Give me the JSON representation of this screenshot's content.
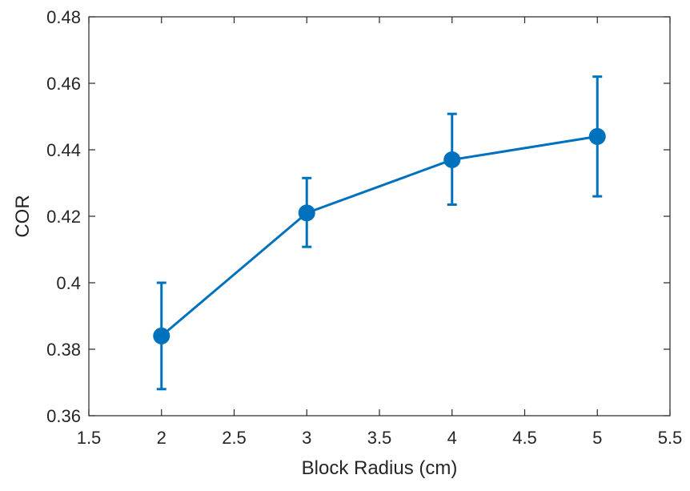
{
  "chart_data": {
    "type": "line",
    "title": "",
    "xlabel": "Block Radius (cm)",
    "ylabel": "COR",
    "xlim": [
      1.5,
      5.5
    ],
    "ylim": [
      0.36,
      0.48
    ],
    "xticks": [
      1.5,
      2,
      2.5,
      3,
      3.5,
      4,
      4.5,
      5,
      5.5
    ],
    "xtick_labels": [
      "1.5",
      "2",
      "2.5",
      "3",
      "3.5",
      "4",
      "4.5",
      "5",
      "5.5"
    ],
    "yticks": [
      0.36,
      0.38,
      0.4,
      0.42,
      0.44,
      0.46,
      0.48
    ],
    "ytick_labels": [
      "0.36",
      "0.38",
      "0.4",
      "0.42",
      "0.44",
      "0.46",
      "0.48"
    ],
    "grid": false,
    "series": [
      {
        "x": [
          2,
          3,
          4,
          5
        ],
        "y": [
          0.384,
          0.421,
          0.437,
          0.444
        ],
        "error_lower": [
          0.368,
          0.4108,
          0.4235,
          0.426
        ],
        "error_upper": [
          0.4,
          0.4315,
          0.4508,
          0.462
        ],
        "color": "#0072BD",
        "marker": "circle"
      }
    ],
    "colors": {
      "axis": "#262626",
      "series": "#0072BD"
    }
  }
}
